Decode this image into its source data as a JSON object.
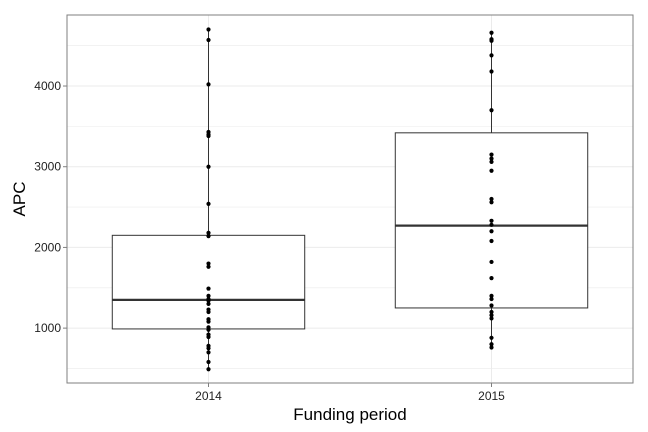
{
  "chart_data": {
    "type": "boxplot",
    "xlabel": "Funding period",
    "ylabel": "APC",
    "ylim": [
      320,
      4880
    ],
    "yticks": [
      1000,
      2000,
      3000,
      4000
    ],
    "ytick_labels": [
      "1000",
      "2000",
      "3000",
      "4000"
    ],
    "grid": true,
    "legend": "none",
    "colors": {
      "panel_border": "#7f7f7f",
      "box": "#333333",
      "grid": "#ebebeb",
      "point": "#000000"
    },
    "categories": [
      "2014",
      "2015"
    ],
    "boxes": [
      {
        "category": "2014",
        "min": 490,
        "q1": 990,
        "median": 1350,
        "q3": 2150,
        "max": 4700,
        "points": [
          4700,
          4570,
          4020,
          3430,
          3400,
          3380,
          3000,
          2540,
          2180,
          2140,
          1800,
          1760,
          1490,
          1400,
          1360,
          1340,
          1300,
          1230,
          1200,
          1110,
          1080,
          1010,
          980,
          920,
          890,
          780,
          750,
          700,
          580,
          490
        ]
      },
      {
        "category": "2015",
        "min": 760,
        "q1": 1250,
        "median": 2270,
        "q3": 3420,
        "max": 4660,
        "points": [
          4660,
          4580,
          4560,
          4380,
          4180,
          3700,
          3150,
          3100,
          3060,
          2950,
          2600,
          2560,
          2330,
          2280,
          2200,
          2080,
          1820,
          1620,
          1400,
          1360,
          1280,
          1200,
          1160,
          1120,
          880,
          800,
          760
        ]
      }
    ]
  }
}
